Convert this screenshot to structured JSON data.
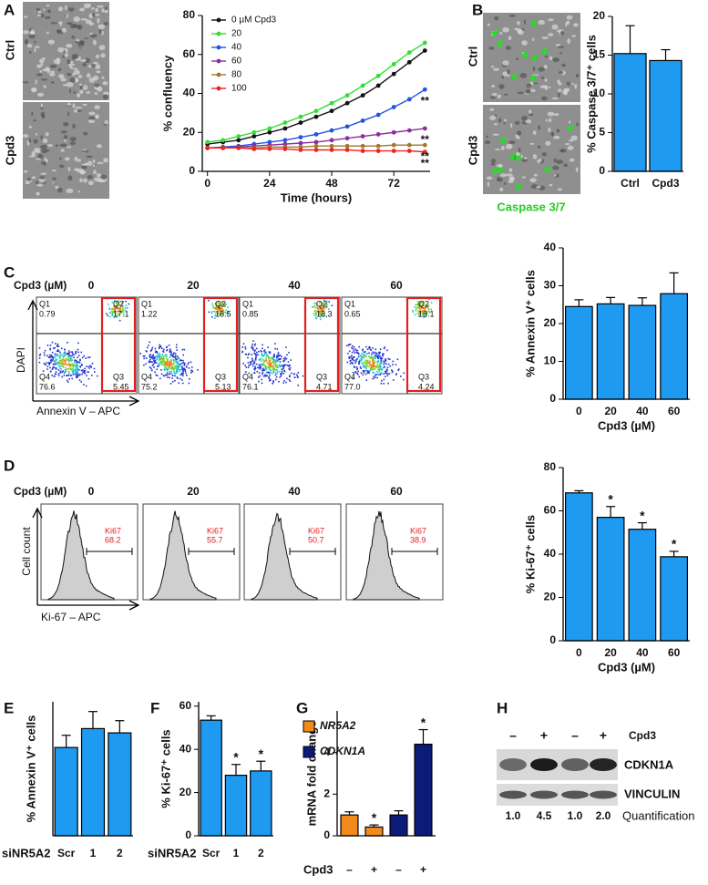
{
  "panel_labels": [
    "A",
    "B",
    "C",
    "D",
    "E",
    "F",
    "G",
    "H"
  ],
  "images": {
    "ctrl": "Ctrl",
    "cpd3": "Cpd3",
    "caspase": "Caspase 3/7"
  },
  "annexin_flow": {
    "dose_label": "Cpd3 (µM)",
    "y_label": "DAPI",
    "x_label": "Annexin V – APC",
    "quadrant_names": [
      "Q1",
      "Q2",
      "Q3",
      "Q4"
    ],
    "plots": [
      {
        "dose": "0",
        "quadrants": [
          "0.79",
          "17.1",
          "5.45",
          "76.6"
        ]
      },
      {
        "dose": "20",
        "quadrants": [
          "1.22",
          "18.5",
          "5.13",
          "75.2"
        ]
      },
      {
        "dose": "40",
        "quadrants": [
          "0.85",
          "18.3",
          "4.71",
          "76.1"
        ]
      },
      {
        "dose": "60",
        "quadrants": [
          "0.65",
          "18.1",
          "4.24",
          "77.0"
        ]
      }
    ]
  },
  "ki67_flow": {
    "dose_label": "Cpd3 (µM)",
    "y_label": "Cell count",
    "x_label": "Ki-67 – APC",
    "gate_name": "Ki67",
    "plots": [
      {
        "dose": "0",
        "value": "68.2"
      },
      {
        "dose": "20",
        "value": "55.7"
      },
      {
        "dose": "40",
        "value": "50.7"
      },
      {
        "dose": "60",
        "value": "38.9"
      }
    ]
  },
  "western": {
    "treatment": "Cpd3",
    "signs": [
      "–",
      "+",
      "–",
      "+"
    ],
    "proteins": [
      "CDKN1A",
      "VINCULIN"
    ],
    "quantification_label": "Quantification",
    "quantification": [
      "1.0",
      "4.5",
      "1.0",
      "2.0"
    ]
  },
  "chart_data": [
    {
      "type": "line",
      "x_label": "Time (hours)",
      "y_label": "% confluency",
      "x": [
        0,
        6,
        12,
        18,
        24,
        30,
        36,
        42,
        48,
        54,
        60,
        66,
        72,
        78,
        84
      ],
      "xlim": [
        -2,
        86
      ],
      "xticks": [
        0,
        24,
        48,
        72
      ],
      "ylim": [
        0,
        80
      ],
      "yticks": [
        0,
        20,
        40,
        60,
        80
      ],
      "series": [
        {
          "name": "0 µM Cpd3",
          "color": "#111111",
          "values": [
            14,
            15,
            16,
            18,
            20,
            22,
            25,
            28,
            31,
            35,
            39,
            44,
            50,
            56,
            62
          ]
        },
        {
          "name": "20",
          "color": "#33dd33",
          "values": [
            15,
            16,
            18,
            20,
            22,
            25,
            28,
            31,
            35,
            39,
            44,
            49,
            55,
            61,
            66
          ]
        },
        {
          "name": "40",
          "color": "#2255dd",
          "values": [
            12,
            12.5,
            13,
            14,
            15,
            16,
            17.5,
            19,
            21,
            23,
            26,
            29,
            33,
            37,
            42
          ]
        },
        {
          "name": "60",
          "color": "#8a2e9e",
          "values": [
            12,
            12,
            12.5,
            13,
            13.5,
            14,
            14.5,
            15,
            16,
            17,
            18,
            19,
            20,
            21,
            22
          ]
        },
        {
          "name": "80",
          "color": "#a0782e",
          "values": [
            12,
            12,
            12,
            12,
            12.5,
            12.5,
            12.5,
            13,
            13,
            13,
            13,
            13,
            13.5,
            13.5,
            13.5
          ]
        },
        {
          "name": "100",
          "color": "#ee2222",
          "values": [
            12,
            12,
            12,
            11.5,
            11.5,
            11.5,
            11,
            11,
            11,
            11,
            10.5,
            10.5,
            10.5,
            10.5,
            10
          ]
        }
      ],
      "annotations": [
        "**",
        "**",
        "**",
        "**"
      ]
    },
    {
      "type": "bar",
      "y_label": "% Caspase 3/7⁺ cells",
      "categories": [
        "Ctrl",
        "Cpd3"
      ],
      "values": [
        15.2,
        14.3
      ],
      "errors": [
        3.6,
        1.4
      ],
      "color": "#1e9af0",
      "ylim": [
        0,
        20
      ],
      "yticks": [
        0,
        5,
        10,
        15,
        20
      ]
    },
    {
      "type": "bar",
      "y_label": "% Annexin V⁺ cells",
      "x_label": "Cpd3 (µM)",
      "categories": [
        "0",
        "20",
        "40",
        "60"
      ],
      "values": [
        24.5,
        25.2,
        24.8,
        27.9
      ],
      "errors": [
        1.8,
        1.7,
        2.0,
        5.5
      ],
      "color": "#1e9af0",
      "ylim": [
        0,
        40
      ],
      "yticks": [
        0,
        10,
        20,
        30,
        40
      ]
    },
    {
      "type": "bar",
      "y_label": "% Ki-67⁺ cells",
      "x_label": "Cpd3 (µM)",
      "categories": [
        "0",
        "20",
        "40",
        "60"
      ],
      "values": [
        68.3,
        57,
        51.5,
        38.8
      ],
      "errors": [
        1,
        5,
        3,
        2.5
      ],
      "significance": [
        null,
        "*",
        "*",
        "*"
      ],
      "color": "#1e9af0",
      "ylim": [
        0,
        80
      ],
      "yticks": [
        0,
        20,
        40,
        60,
        80
      ]
    },
    {
      "type": "bar",
      "y_label": "% Annexin V⁺ cells",
      "x_label": "siNR5A2",
      "categories": [
        "Scr",
        "1",
        "2"
      ],
      "values": [
        14.5,
        17.6,
        16.9
      ],
      "errors": [
        2,
        2.8,
        2
      ],
      "color": "#1e9af0",
      "ylim": [
        0,
        22
      ]
    },
    {
      "type": "bar",
      "y_label": "% Ki-67⁺ cells",
      "x_label": "siNR5A2",
      "categories": [
        "Scr",
        "1",
        "2"
      ],
      "values": [
        53.5,
        28,
        30
      ],
      "errors": [
        2,
        5,
        4.5
      ],
      "significance": [
        null,
        "*",
        "*"
      ],
      "color": "#1e9af0",
      "ylim": [
        0,
        62
      ],
      "yticks": [
        0,
        20,
        40,
        60
      ]
    },
    {
      "type": "bar",
      "y_label": "mRNA fold change",
      "x_label": "Cpd3",
      "categories": [
        "–",
        "+",
        "–",
        "+"
      ],
      "ylim": [
        0,
        6
      ],
      "yticks": [
        0,
        2,
        4
      ],
      "series": [
        {
          "name": "NR5A2",
          "color": "#f28a1c",
          "values": [
            1.0,
            0.42,
            null,
            null
          ],
          "errors": [
            0.15,
            0.1,
            null,
            null
          ],
          "significance": [
            null,
            "*",
            null,
            null
          ]
        },
        {
          "name": "CDKN1A",
          "color": "#0c1a78",
          "values": [
            null,
            null,
            1.0,
            4.4
          ],
          "errors": [
            null,
            null,
            0.2,
            0.7
          ],
          "significance": [
            null,
            null,
            null,
            "*"
          ]
        }
      ]
    }
  ]
}
